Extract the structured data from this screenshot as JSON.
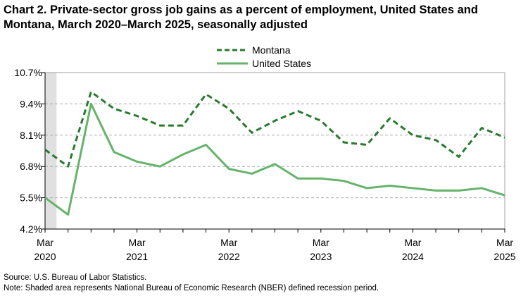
{
  "title": "Chart 2. Private-sector gross job gains as a percent of employment, United States and Montana, March 2020–March 2025, seasonally adjusted",
  "notes": {
    "source": "Source: U.S. Bureau of Labor Statistics.",
    "shading": "Note: Shaded area represents National Bureau of Economic Research (NBER) defined recession period."
  },
  "chart_data": {
    "type": "line",
    "title": "Chart 2. Private-sector gross job gains as a percent of employment, United States and Montana, March 2020–March 2025, seasonally adjusted",
    "x": [
      "Mar 2020",
      "Jun 2020",
      "Sep 2020",
      "Dec 2020",
      "Mar 2021",
      "Jun 2021",
      "Sep 2021",
      "Dec 2021",
      "Mar 2022",
      "Jun 2022",
      "Sep 2022",
      "Dec 2022",
      "Mar 2023",
      "Jun 2023",
      "Sep 2023",
      "Dec 2023",
      "Mar 2024",
      "Jun 2024",
      "Sep 2024",
      "Dec 2024",
      "Mar 2025"
    ],
    "x_tick_labels": [
      {
        "index": 0,
        "month": "Mar",
        "year": "2020"
      },
      {
        "index": 4,
        "month": "Mar",
        "year": "2021"
      },
      {
        "index": 8,
        "month": "Mar",
        "year": "2022"
      },
      {
        "index": 12,
        "month": "Mar",
        "year": "2023"
      },
      {
        "index": 16,
        "month": "Mar",
        "year": "2024"
      },
      {
        "index": 20,
        "month": "Mar",
        "year": "2025"
      }
    ],
    "y_ticks": [
      "10.7%",
      "9.4%",
      "8.1%",
      "6.8%",
      "5.5%",
      "4.2%"
    ],
    "ylim": [
      4.2,
      10.7
    ],
    "grid": true,
    "legend_placement": "top-center",
    "recession_shading": {
      "start": "Mar 2020",
      "end": "Apr 2020",
      "color": "#e0e0e0"
    },
    "series": [
      {
        "name": "Montana",
        "style": "dashed",
        "color": "#2a7a2e",
        "values": [
          7.5,
          6.8,
          9.9,
          9.2,
          8.9,
          8.5,
          8.5,
          9.8,
          9.2,
          8.2,
          8.7,
          9.1,
          8.7,
          7.8,
          7.7,
          8.8,
          8.1,
          7.9,
          7.2,
          8.4,
          8.0
        ]
      },
      {
        "name": "United States",
        "style": "solid",
        "color": "#66b36b",
        "values": [
          5.5,
          4.8,
          9.4,
          7.4,
          7.0,
          6.8,
          7.3,
          7.7,
          6.7,
          6.5,
          6.9,
          6.3,
          6.3,
          6.2,
          5.9,
          6.0,
          5.9,
          5.8,
          5.8,
          5.9,
          5.6
        ]
      }
    ]
  }
}
